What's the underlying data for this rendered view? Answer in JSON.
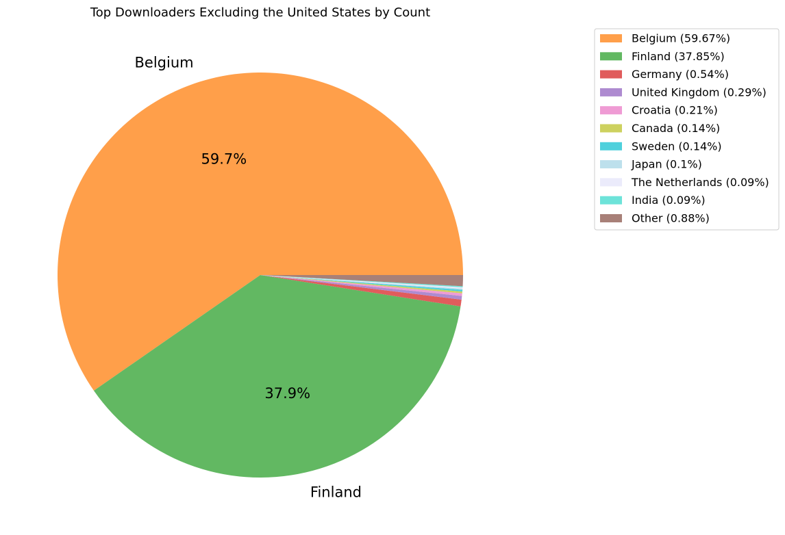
{
  "chart_data": {
    "type": "pie",
    "title": "Top Downloaders Excluding the United States by Count",
    "slices": [
      {
        "label": "Belgium",
        "value": 59.67,
        "legend": "Belgium (59.67%)",
        "color": "#ff9f4a",
        "outer_label": "Belgium",
        "pct_label": "59.7%"
      },
      {
        "label": "Finland",
        "value": 37.85,
        "legend": "Finland (37.85%)",
        "color": "#62b862",
        "outer_label": "Finland",
        "pct_label": "37.9%"
      },
      {
        "label": "Germany",
        "value": 0.54,
        "legend": "Germany (0.54%)",
        "color": "#e05c5c",
        "outer_label": "",
        "pct_label": ""
      },
      {
        "label": "United Kingdom",
        "value": 0.29,
        "legend": "United Kingdom (0.29%)",
        "color": "#ae8bd0",
        "outer_label": "",
        "pct_label": ""
      },
      {
        "label": "Croatia",
        "value": 0.21,
        "legend": "Croatia (0.21%)",
        "color": "#ef9bd4",
        "outer_label": "",
        "pct_label": ""
      },
      {
        "label": "Canada",
        "value": 0.14,
        "legend": "Canada (0.14%)",
        "color": "#cdd15f",
        "outer_label": "",
        "pct_label": ""
      },
      {
        "label": "Sweden",
        "value": 0.14,
        "legend": "Sweden (0.14%)",
        "color": "#4fd0dc",
        "outer_label": "",
        "pct_label": ""
      },
      {
        "label": "Japan",
        "value": 0.1,
        "legend": "Japan (0.1%)",
        "color": "#bde0ec",
        "outer_label": "",
        "pct_label": ""
      },
      {
        "label": "The Netherlands",
        "value": 0.09,
        "legend": "The Netherlands (0.09%)",
        "color": "#ebebfb",
        "outer_label": "",
        "pct_label": ""
      },
      {
        "label": "India",
        "value": 0.09,
        "legend": "India (0.09%)",
        "color": "#6de3d9",
        "outer_label": "",
        "pct_label": ""
      },
      {
        "label": "Other",
        "value": 0.88,
        "legend": "Other (0.88%)",
        "color": "#a88078",
        "outer_label": "",
        "pct_label": ""
      }
    ],
    "legend_position": "upper-right",
    "start_angle_deg": 0,
    "direction": "counterclockwise"
  }
}
